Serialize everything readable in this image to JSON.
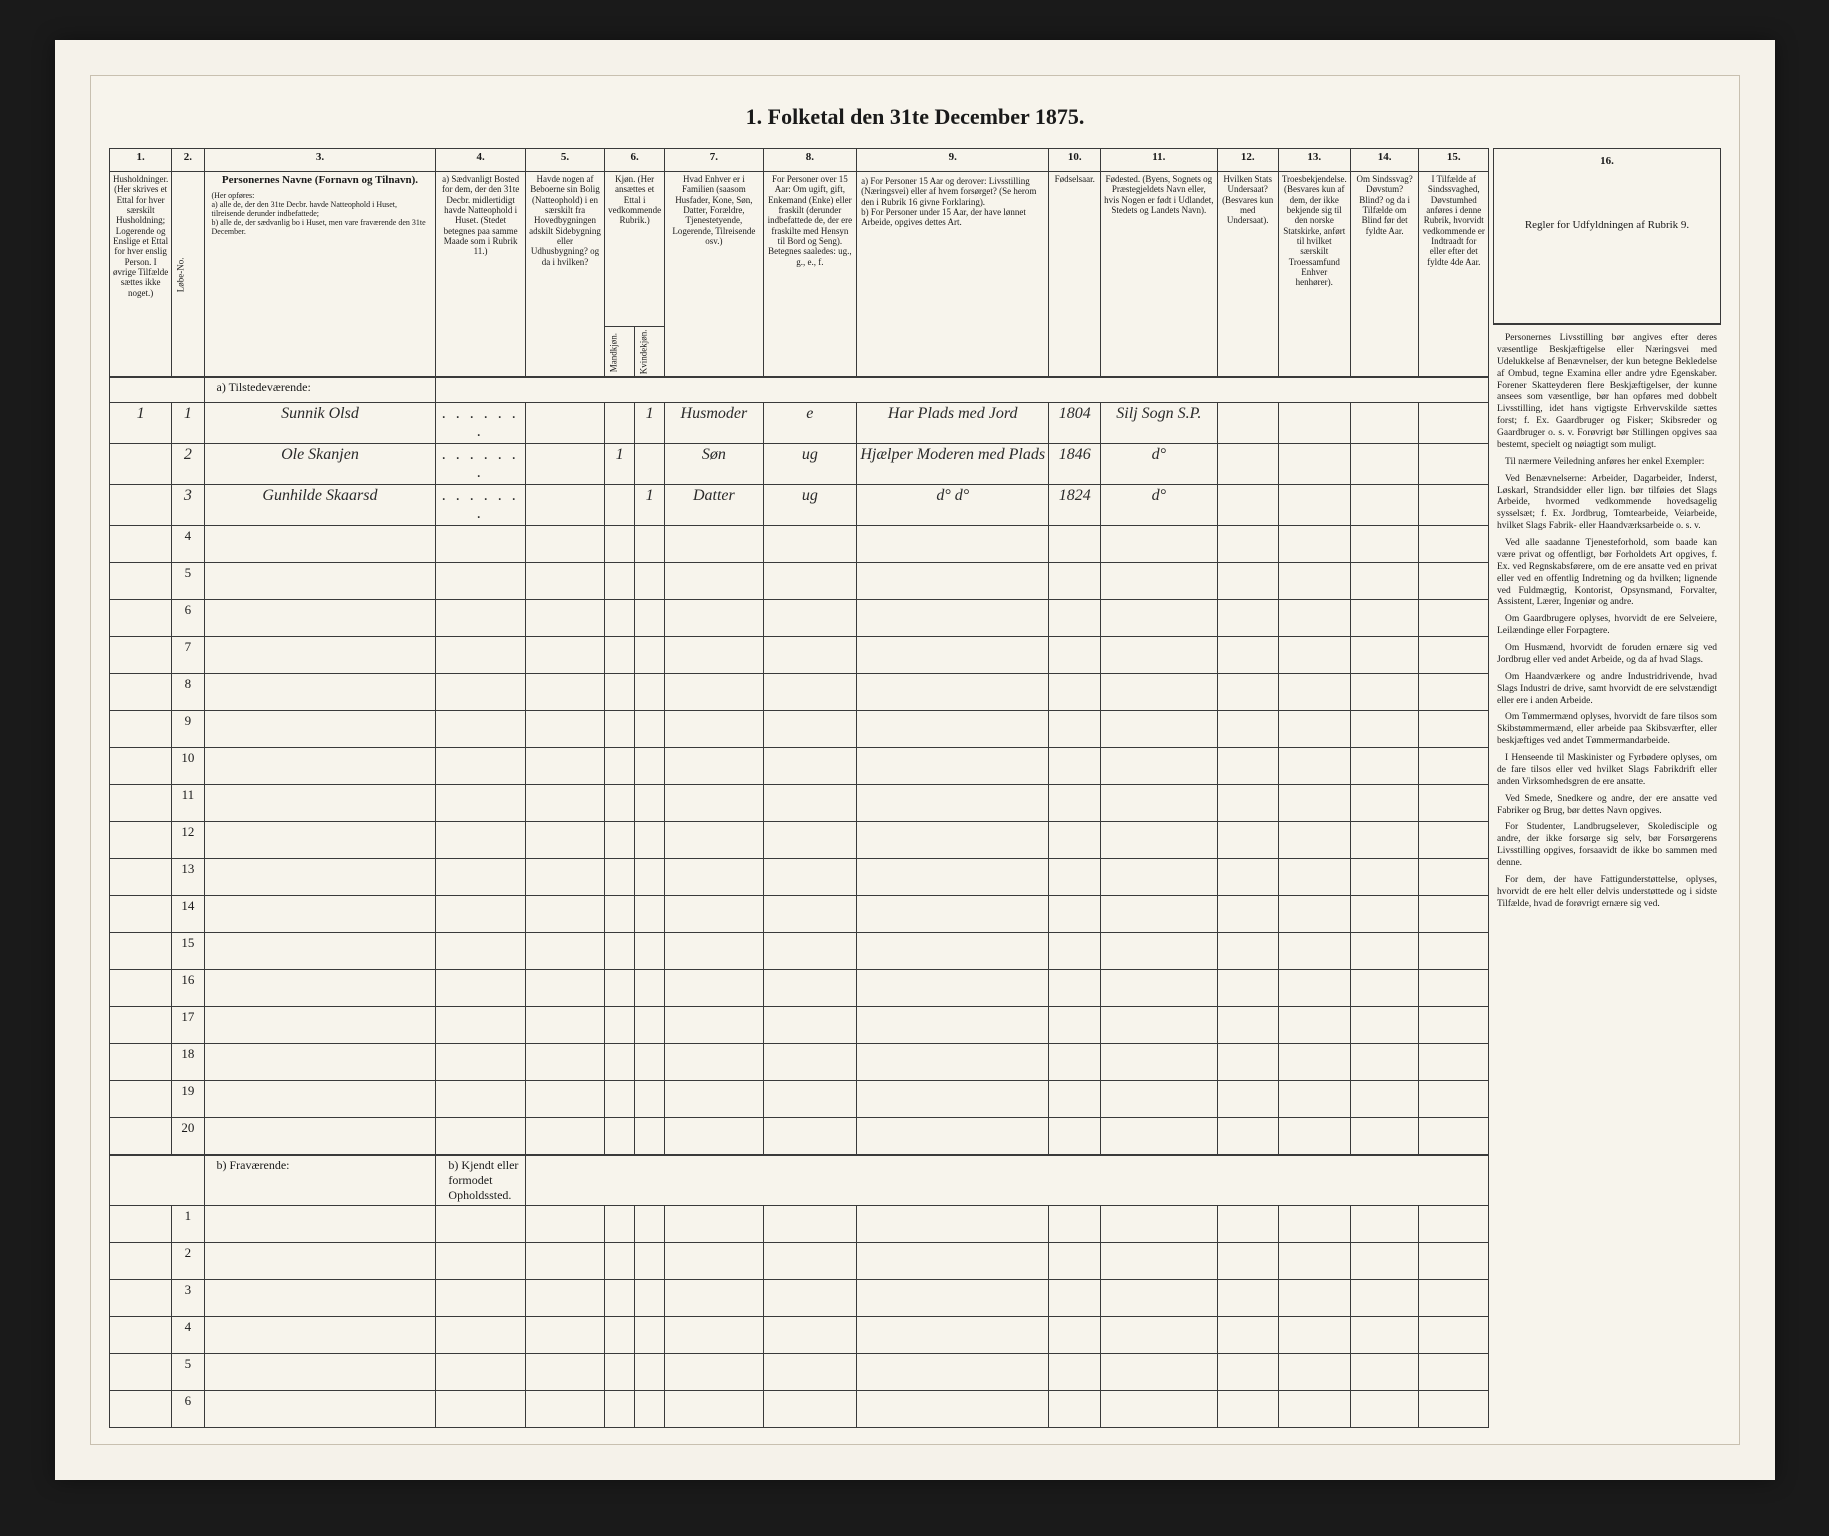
{
  "title": "1. Folketal den 31te December 1875.",
  "columns": {
    "numbers": [
      "1.",
      "2.",
      "3.",
      "4.",
      "5.",
      "6.",
      "7.",
      "8.",
      "9.",
      "10.",
      "11.",
      "12.",
      "13.",
      "14.",
      "15.",
      "16."
    ],
    "h1": "Husholdninger. (Her skrives et Ettal for hver særskilt Husholdning; Logerende og Enslige et Ettal for hver enslig Person. I øvrige Tilfælde sættes ikke noget.)",
    "h2": "Løbe-No.",
    "h3_title": "Personernes Navne (Fornavn og Tilnavn).",
    "h3_sub": "(Her opføres:\na) alle de, der den 31te Decbr. havde Natteophold i Huset, tilreisende derunder indbefattede;\nb) alle de, der sædvanlig bo i Huset, men vare fraværende den 31te December.",
    "h4": "a) Sædvanligt Bosted for dem, der den 31te Decbr. midlertidigt havde Natteophold i Huset. (Stedet betegnes paa samme Maade som i Rubrik 11.)",
    "h5": "Havde nogen af Beboerne sin Bolig (Natteophold) i en særskilt fra Hovedbygningen adskilt Sidebygning eller Udhusbygning? og da i hvilken?",
    "h6": "Kjøn. (Her ansættes et Ettal i vedkommende Rubrik.)",
    "h6a": "Mandkjøn.",
    "h6b": "Kvindekjøn.",
    "h7": "Hvad Enhver er i Familien (saasom Husfader, Kone, Søn, Datter, Forældre, Tjenestetyende, Logerende, Tilreisende osv.)",
    "h8": "For Personer over 15 Aar: Om ugift, gift, Enkemand (Enke) eller fraskilt (derunder indbefattede de, der ere fraskilte med Hensyn til Bord og Seng). Betegnes saaledes: ug., g., e., f.",
    "h9": "a) For Personer 15 Aar og derover: Livsstilling (Næringsvei) eller af hvem forsørget? (Se herom den i Rubrik 16 givne Forklaring).\nb) For Personer under 15 Aar, der have lønnet Arbeide, opgives dettes Art.",
    "h10": "Fødselsaar.",
    "h11": "Fødested. (Byens, Sognets og Præstegjeldets Navn eller, hvis Nogen er født i Udlandet, Stedets og Landets Navn).",
    "h12": "Hvilken Stats Undersaat? (Besvares kun med Undersaat).",
    "h13": "Troesbekjendelse. (Besvares kun af dem, der ikke bekjende sig til den norske Statskirke, anført til hvilket særskilt Troessamfund Enhver henhører).",
    "h14": "Om Sindssvag? Døvstum? Blind? og da i Tilfælde om Blind før det fyldte Aar.",
    "h15": "I Tilfælde af Sindssvaghed, Døvstumhed anføres i denne Rubrik, hvorvidt vedkommende er Indtraadt for eller efter det fyldte 4de Aar.",
    "h16_title": "Regler for Udfyldningen af Rubrik 9."
  },
  "sections": {
    "a": "a) Tilstedeværende:",
    "b": "b) Fraværende:",
    "b_note": "b) Kjendt eller formodet Opholdssted."
  },
  "rows_a": [
    {
      "n": "1",
      "name": "Sunnik Olsd",
      "c4": ". . . . . . .",
      "c6b": "1",
      "c7": "Husmoder",
      "c8": "e",
      "c9": "Har Plads med Jord",
      "c10": "1804",
      "c11": "Silj Sogn S.P."
    },
    {
      "n": "2",
      "name": "Ole Skanjen",
      "c4": ". . . . . . .",
      "c6a": "1",
      "c7": "Søn",
      "c8": "ug",
      "c9": "Hjælper Moderen med Plads",
      "c10": "1846",
      "c11": "d°"
    },
    {
      "n": "3",
      "name": "Gunhilde Skaarsd",
      "c4": ". . . . . . .",
      "c6b": "1",
      "c7": "Datter",
      "c8": "ug",
      "c9": "d°           d°",
      "c10": "1824",
      "c11": "d°"
    }
  ],
  "empty_a_rows": [
    4,
    5,
    6,
    7,
    8,
    9,
    10,
    11,
    12,
    13,
    14,
    15,
    16,
    17,
    18,
    19,
    20
  ],
  "rows_b": [
    1,
    2,
    3,
    4,
    5,
    6
  ],
  "rules_text": [
    "Personernes Livsstilling bør angives efter deres væsentlige Beskjæftigelse eller Næringsvei med Udelukkelse af Benævnelser, der kun betegne Bekledelse af Ombud, tegne Examina eller andre ydre Egenskaber. Forener Skatteyderen flere Beskjæftigelser, der kunne ansees som væsentlige, bør han opføres med dobbelt Livsstilling, idet hans vigtigste Erhvervskilde sættes forst; f. Ex. Gaardbruger og Fisker; Skibsreder og Gaardbruger o. s. v. Forøvrigt bør Stillingen opgives saa bestemt, specielt og nøiagtigt som muligt.",
    "Til nærmere Veiledning anføres her enkel Exempler:",
    "Ved Benævnelserne: Arbeider, Dagarbeider, Inderst, Løskarl, Strandsidder eller lign. bør tilføies det Slags Arbeide, hvormed vedkommende hovedsagelig sysselsæt; f. Ex. Jordbrug, Tomtearbeide, Veiarbeide, hvilket Slags Fabrik- eller Haandværksarbeide o. s. v.",
    "Ved alle saadanne Tjenesteforhold, som baade kan være privat og offentligt, bør Forholdets Art opgives, f. Ex. ved Regnskabsførere, om de ere ansatte ved en privat eller ved en offentlig Indretning og da hvilken; lignende ved Fuldmægtig, Kontorist, Opsynsmand, Forvalter, Assistent, Lærer, Ingeniør og andre.",
    "Om Gaardbrugere oplyses, hvorvidt de ere Selveiere, Leilændinge eller Forpagtere.",
    "Om Husmænd, hvorvidt de foruden ernære sig ved Jordbrug eller ved andet Arbeide, og da af hvad Slags.",
    "Om Haandværkere og andre Industridrivende, hvad Slags Industri de drive, samt hvorvidt de ere selvstændigt eller ere i anden Arbeide.",
    "Om Tømmermænd oplyses, hvorvidt de fare tilsos som Skibstømmermænd, eller arbeide paa Skibsværfter, eller beskjæftiges ved andet Tømmermandarbeide.",
    "I Henseende til Maskinister og Fyrbødere oplyses, om de fare tilsos eller ved hvilket Slags Fabrikdrift eller anden Virksomhedsgren de ere ansatte.",
    "Ved Smede, Snedkere og andre, der ere ansatte ved Fabriker og Brug, bør dettes Navn opgives.",
    "For Studenter, Landbrugselever, Skoledisciple og andre, der ikke forsørge sig selv, bør Forsørgerens Livsstilling opgives, forsaavidt de ikke bo sammen med denne.",
    "For dem, der have Fattigunderstøttelse, oplyses, hvorvidt de ere helt eller delvis understøttede og i sidste Tilfælde, hvad de forøvrigt ernære sig ved."
  ],
  "styling": {
    "page_bg": "#f7f4ec",
    "border_color": "#3a3a3a",
    "text_color": "#1a1a1a",
    "title_fontsize": 22,
    "header_fontsize": 9,
    "body_fontsize": 10,
    "handwriting_fontsize": 16
  }
}
